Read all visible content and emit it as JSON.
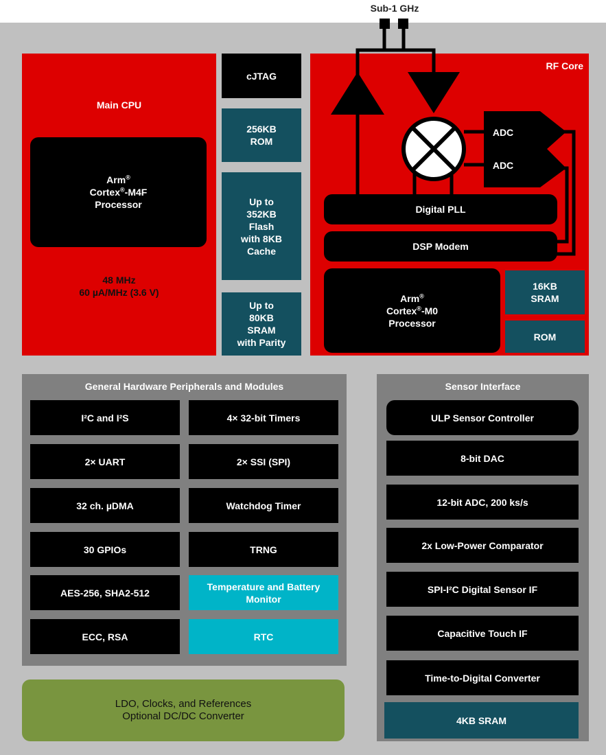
{
  "antenna_label": "Sub-1 GHz",
  "main_cpu": {
    "title": "Main CPU",
    "processor": [
      "Arm",
      "Cortex",
      "-M4F",
      "Processor"
    ],
    "freq": "48 MHz",
    "power": "60 µA/MHz (3.6 V)"
  },
  "memory": {
    "cjtag": "cJTAG",
    "rom": [
      "256KB",
      "ROM"
    ],
    "flash": [
      "Up to",
      "352KB",
      "Flash",
      "with 8KB",
      "Cache"
    ],
    "sram": [
      "Up to",
      "80KB",
      "SRAM",
      "with Parity"
    ]
  },
  "rf_core": {
    "title": "RF Core",
    "adc1": "ADC",
    "adc2": "ADC",
    "pll": "Digital PLL",
    "dsp": "DSP Modem",
    "processor": [
      "Arm",
      "Cortex",
      "-M0",
      "Processor"
    ],
    "sram": [
      "16KB",
      "SRAM"
    ],
    "rom": "ROM"
  },
  "peripherals": {
    "title": "General Hardware Peripherals and Modules",
    "cells": [
      "I²C and I²S",
      "4× 32-bit Timers",
      "2× UART",
      "2× SSI (SPI)",
      "32 ch. µDMA",
      "Watchdog Timer",
      "30 GPIOs",
      "TRNG",
      "AES-256,  SHA2-512",
      "Temperature and Battery Monitor",
      "ECC, RSA",
      "RTC"
    ]
  },
  "sensor": {
    "title": "Sensor Interface",
    "cells": [
      "ULP Sensor Controller",
      "8-bit DAC",
      "12-bit ADC, 200 ks/s",
      "2x Low-Power Comparator",
      "SPI-I²C Digital Sensor IF",
      "Capacitive Touch IF",
      "Time-to-Digital Converter",
      "4KB SRAM"
    ]
  },
  "power": [
    "LDO, Clocks, and References",
    "Optional DC/DC Converter"
  ],
  "colors": {
    "red": "#dd0000",
    "teal": "#14505f",
    "cyan": "#00b4c8",
    "green": "#79953f",
    "panel": "#808080",
    "background": "#c0c0c0"
  }
}
